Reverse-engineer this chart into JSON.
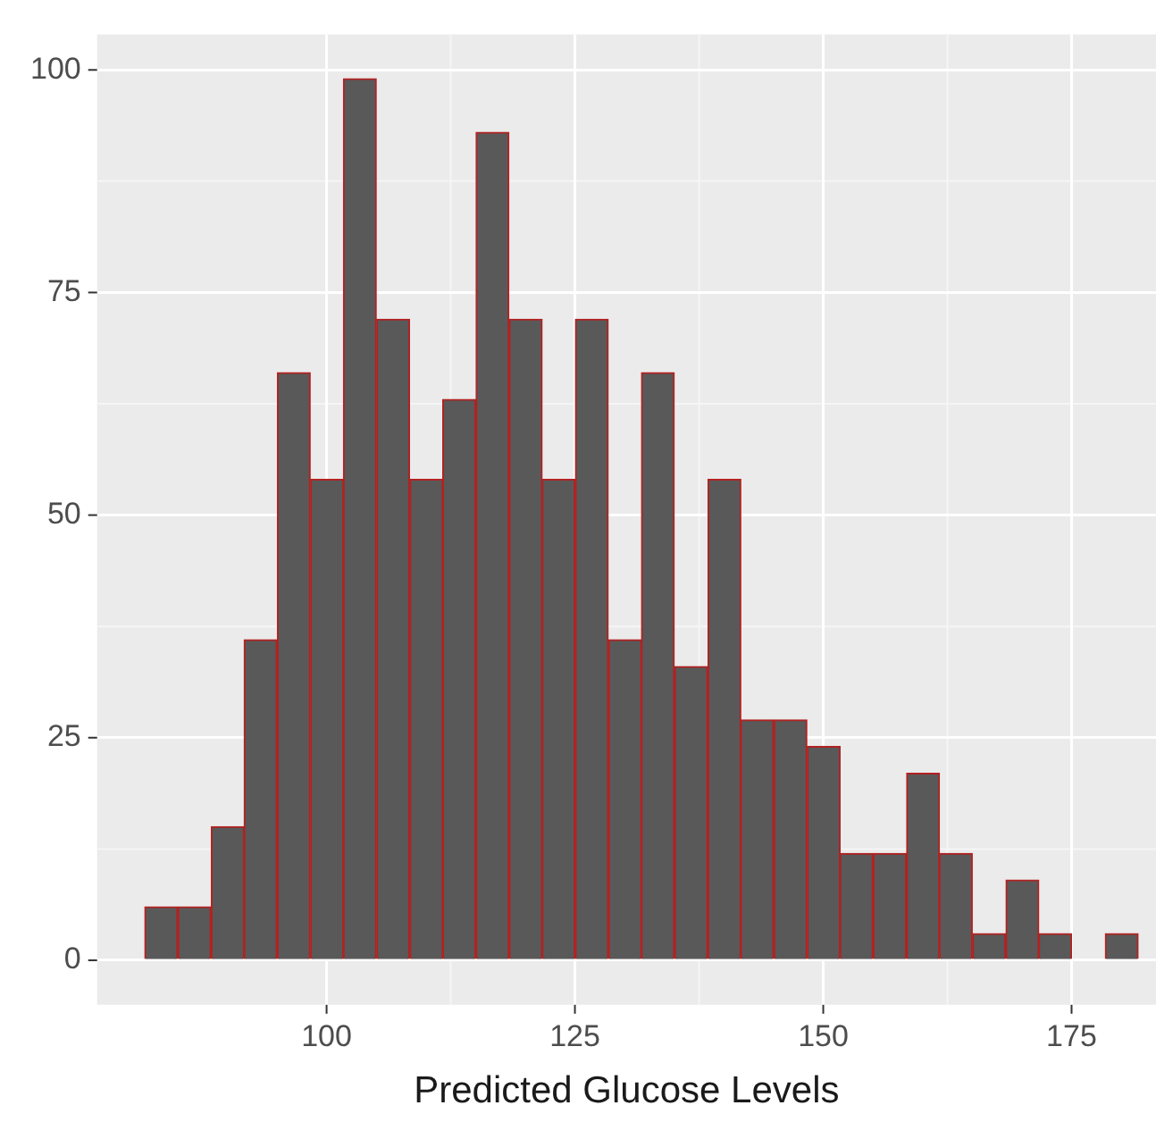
{
  "chart_data": {
    "type": "histogram",
    "xlabel": "Predicted Glucose Levels",
    "bins": [
      81.7,
      85.0,
      88.4,
      91.7,
      95.0,
      98.4,
      101.7,
      105.0,
      108.4,
      111.7,
      115.0,
      118.4,
      121.7,
      125.0,
      128.4,
      131.7,
      135.0,
      138.4,
      141.7,
      145.0,
      148.4,
      151.7,
      155.0,
      158.4,
      161.7,
      165.0,
      168.4,
      171.7,
      175.0,
      178.4,
      181.7
    ],
    "values": [
      6,
      6,
      15,
      36,
      66,
      54,
      99,
      72,
      54,
      63,
      93,
      72,
      54,
      72,
      36,
      66,
      33,
      54,
      27,
      27,
      24,
      12,
      12,
      21,
      12,
      3,
      9,
      3,
      0,
      3
    ],
    "color": "#595959",
    "xlim": [
      76.9,
      183.5
    ],
    "xticks": [
      100,
      125,
      150,
      175
    ],
    "ylim": [
      -5,
      104
    ],
    "yticks": [
      0,
      25,
      50,
      75,
      100
    ],
    "grid": true,
    "legend": false
  }
}
